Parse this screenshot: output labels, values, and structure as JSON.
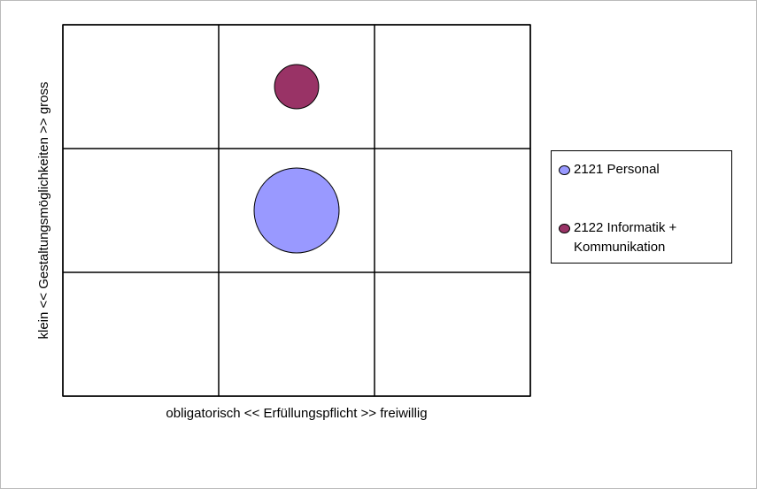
{
  "chart_data": {
    "type": "bubble",
    "x_label": "obligatorisch << Erfüllungspflicht >> freiwillig",
    "y_label": "klein << Gestaltungsmöglichkeiten >> gross",
    "xlim": [
      0,
      3
    ],
    "ylim": [
      0,
      3
    ],
    "xticks": [
      0,
      1,
      2,
      3
    ],
    "yticks": [
      0,
      1,
      2,
      3
    ],
    "grid": true,
    "legend": "right",
    "series": [
      {
        "name": "2121 Personal",
        "color": "#9999ff",
        "x": [
          1.5
        ],
        "y": [
          1.5
        ],
        "sizes": [
          100
        ]
      },
      {
        "name": "2122 Informatik + Kommunikation",
        "color": "#993366",
        "x": [
          1.5
        ],
        "y": [
          2.5
        ],
        "sizes": [
          27
        ]
      }
    ]
  }
}
